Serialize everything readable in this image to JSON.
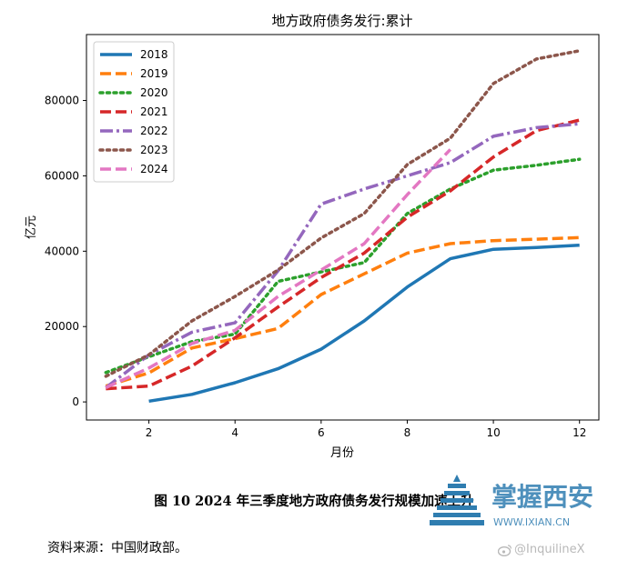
{
  "chart_data": {
    "type": "line",
    "title": "地方政府债务发行:累计",
    "xlabel": "月份",
    "ylabel": "亿元",
    "xlim": [
      0.55,
      12.45
    ],
    "ylim": [
      -4800,
      97500
    ],
    "xticks": [
      2,
      4,
      6,
      8,
      10,
      12
    ],
    "yticks": [
      0,
      20000,
      40000,
      60000,
      80000
    ],
    "legend_position": "top-left",
    "grid": false,
    "series": [
      {
        "name": "2018",
        "color": "#1f77b4",
        "dash": "solid",
        "x": [
          2,
          3,
          4,
          5,
          6,
          7,
          8,
          9,
          10,
          11,
          12
        ],
        "y": [
          200,
          2000,
          5100,
          8800,
          14000,
          21500,
          30500,
          38000,
          40500,
          41000,
          41600
        ]
      },
      {
        "name": "2019",
        "color": "#ff7f0e",
        "dash": "dashed",
        "x": [
          1,
          2,
          3,
          4,
          5,
          6,
          7,
          8,
          9,
          10,
          11,
          12
        ],
        "y": [
          4200,
          7700,
          14300,
          16800,
          19500,
          28500,
          34000,
          39500,
          42000,
          42800,
          43200,
          43600
        ]
      },
      {
        "name": "2020",
        "color": "#2ca02c",
        "dash": "dotted",
        "x": [
          1,
          2,
          3,
          4,
          5,
          6,
          7,
          8,
          9,
          10,
          11,
          12
        ],
        "y": [
          7800,
          12000,
          16000,
          18000,
          32000,
          34500,
          37000,
          50000,
          56500,
          61500,
          62800,
          64400
        ]
      },
      {
        "name": "2021",
        "color": "#d62728",
        "dash": "dashed",
        "x": [
          1,
          2,
          3,
          4,
          5,
          6,
          7,
          8,
          9,
          10,
          11,
          12
        ],
        "y": [
          3500,
          4200,
          9500,
          17000,
          25200,
          33000,
          39500,
          49000,
          56000,
          65000,
          72000,
          74800
        ]
      },
      {
        "name": "2022",
        "color": "#9467bd",
        "dash": "dashdot",
        "x": [
          1,
          2,
          3,
          4,
          5,
          6,
          7,
          8,
          9,
          10,
          11,
          12
        ],
        "y": [
          3800,
          12500,
          18500,
          21000,
          34800,
          52500,
          56500,
          60000,
          63500,
          70500,
          72800,
          73800
        ]
      },
      {
        "name": "2023",
        "color": "#8c564b",
        "dash": "dotted",
        "x": [
          1,
          2,
          3,
          4,
          5,
          6,
          7,
          8,
          9,
          10,
          11,
          12
        ],
        "y": [
          6800,
          12500,
          21500,
          28000,
          35000,
          43500,
          50000,
          63000,
          70000,
          84500,
          91000,
          93200
        ]
      },
      {
        "name": "2024",
        "color": "#e377c2",
        "dash": "dashed",
        "x": [
          1,
          2,
          3,
          4,
          5,
          6,
          7,
          8,
          9
        ],
        "y": [
          3800,
          9000,
          15500,
          19000,
          28000,
          35000,
          42000,
          55000,
          67000
        ]
      }
    ]
  },
  "caption": "图 10   2024 年三季度地方政府债务发行规模加速上升",
  "source_note": "资料来源：中国财政部。",
  "watermark": {
    "logo_text": "掌握西安",
    "logo_url_text": "WWW.IXIAN.CN",
    "handle": "@InquilineX",
    "logo_color": "#2f7db0",
    "icon": "weibo-icon"
  }
}
